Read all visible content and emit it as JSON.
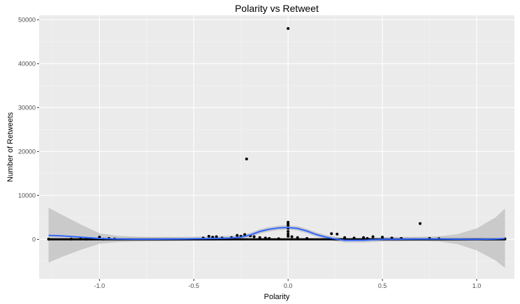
{
  "chart_data": {
    "type": "scatter",
    "title": "Polarity vs Retweet",
    "xlabel": "Polarity",
    "ylabel": "Number of Retweets",
    "xlim": [
      -1.32,
      1.2
    ],
    "ylim": [
      -9000,
      51000
    ],
    "x_ticks": [
      -1.0,
      -0.5,
      0.0,
      0.5,
      1.0
    ],
    "x_tick_labels": [
      "-1.0",
      "-0.5",
      "0.0",
      "0.5",
      "1.0"
    ],
    "y_ticks": [
      0,
      10000,
      20000,
      30000,
      40000,
      50000
    ],
    "y_tick_labels": [
      "0",
      "10000",
      "20000",
      "30000",
      "40000",
      "50000"
    ],
    "grid": true,
    "background": "#ebebeb",
    "gridline_color": "#ffffff",
    "point_color": "#000000",
    "smooth_line_color": "#3366ff",
    "ribbon_color": "#bdbdbd",
    "points": [
      {
        "x": -1.27,
        "y": 50
      },
      {
        "x": -1.15,
        "y": 60
      },
      {
        "x": -1.1,
        "y": 100
      },
      {
        "x": -1.07,
        "y": 40
      },
      {
        "x": -1.05,
        "y": 80
      },
      {
        "x": -1.0,
        "y": 500
      },
      {
        "x": -0.98,
        "y": 70
      },
      {
        "x": -0.95,
        "y": 200
      },
      {
        "x": -0.92,
        "y": 100
      },
      {
        "x": -0.45,
        "y": 300
      },
      {
        "x": -0.42,
        "y": 700
      },
      {
        "x": -0.4,
        "y": 500
      },
      {
        "x": -0.38,
        "y": 600
      },
      {
        "x": -0.35,
        "y": 300
      },
      {
        "x": -0.3,
        "y": 400
      },
      {
        "x": -0.27,
        "y": 900
      },
      {
        "x": -0.25,
        "y": 700
      },
      {
        "x": -0.23,
        "y": 1100
      },
      {
        "x": -0.22,
        "y": 18300
      },
      {
        "x": -0.2,
        "y": 800
      },
      {
        "x": -0.18,
        "y": 600
      },
      {
        "x": -0.15,
        "y": 400
      },
      {
        "x": -0.12,
        "y": 300
      },
      {
        "x": -0.1,
        "y": 200
      },
      {
        "x": -0.05,
        "y": 150
      },
      {
        "x": 0.0,
        "y": 48000
      },
      {
        "x": 0.0,
        "y": 3900
      },
      {
        "x": 0.0,
        "y": 3500
      },
      {
        "x": 0.0,
        "y": 3200
      },
      {
        "x": 0.0,
        "y": 2500
      },
      {
        "x": 0.0,
        "y": 1800
      },
      {
        "x": 0.0,
        "y": 1200
      },
      {
        "x": 0.0,
        "y": 700
      },
      {
        "x": 0.02,
        "y": 600
      },
      {
        "x": 0.05,
        "y": 400
      },
      {
        "x": 0.1,
        "y": 200
      },
      {
        "x": 0.23,
        "y": 1300
      },
      {
        "x": 0.26,
        "y": 1200
      },
      {
        "x": 0.3,
        "y": 400
      },
      {
        "x": 0.35,
        "y": 300
      },
      {
        "x": 0.4,
        "y": 400
      },
      {
        "x": 0.42,
        "y": 200
      },
      {
        "x": 0.45,
        "y": 600
      },
      {
        "x": 0.5,
        "y": 500
      },
      {
        "x": 0.55,
        "y": 300
      },
      {
        "x": 0.6,
        "y": 200
      },
      {
        "x": 0.7,
        "y": 3600
      },
      {
        "x": 0.75,
        "y": 200
      },
      {
        "x": 0.8,
        "y": 150
      },
      {
        "x": 1.15,
        "y": 100
      }
    ],
    "baseline_segments": [
      {
        "x_from": -1.27,
        "x_to": -0.9,
        "y": 0
      },
      {
        "x_from": -0.9,
        "x_to": -0.25,
        "y": 0
      },
      {
        "x_from": -0.25,
        "x_to": 0.25,
        "y": 0
      },
      {
        "x_from": 0.25,
        "x_to": 0.75,
        "y": 0
      },
      {
        "x_from": 0.75,
        "x_to": 1.15,
        "y": 0
      }
    ],
    "smooth": {
      "x": [
        -1.27,
        -1.2,
        -1.1,
        -1.0,
        -0.9,
        -0.8,
        -0.7,
        -0.6,
        -0.5,
        -0.4,
        -0.3,
        -0.25,
        -0.2,
        -0.15,
        -0.1,
        -0.05,
        0.0,
        0.05,
        0.1,
        0.15,
        0.2,
        0.25,
        0.3,
        0.4,
        0.5,
        0.6,
        0.7,
        0.8,
        0.9,
        1.0,
        1.1,
        1.15
      ],
      "y": [
        900,
        800,
        500,
        200,
        100,
        50,
        50,
        80,
        150,
        200,
        300,
        500,
        1000,
        1800,
        2300,
        2600,
        2700,
        2500,
        1900,
        1100,
        500,
        100,
        -200,
        -200,
        0,
        50,
        100,
        100,
        50,
        0,
        100,
        200
      ],
      "upper": [
        7200,
        5600,
        3400,
        1400,
        800,
        600,
        550,
        550,
        600,
        700,
        800,
        1000,
        1500,
        2300,
        2800,
        3100,
        3200,
        3000,
        2400,
        1600,
        1000,
        600,
        300,
        300,
        500,
        550,
        600,
        700,
        1200,
        2500,
        5000,
        7000
      ],
      "lower": [
        -5300,
        -4000,
        -2400,
        -1000,
        -600,
        -500,
        -450,
        -400,
        -300,
        -300,
        -200,
        0,
        500,
        1300,
        1800,
        2100,
        2200,
        2000,
        1400,
        600,
        0,
        -400,
        -700,
        -700,
        -500,
        -450,
        -400,
        -500,
        -1100,
        -2500,
        -4800,
        -6500
      ]
    }
  }
}
